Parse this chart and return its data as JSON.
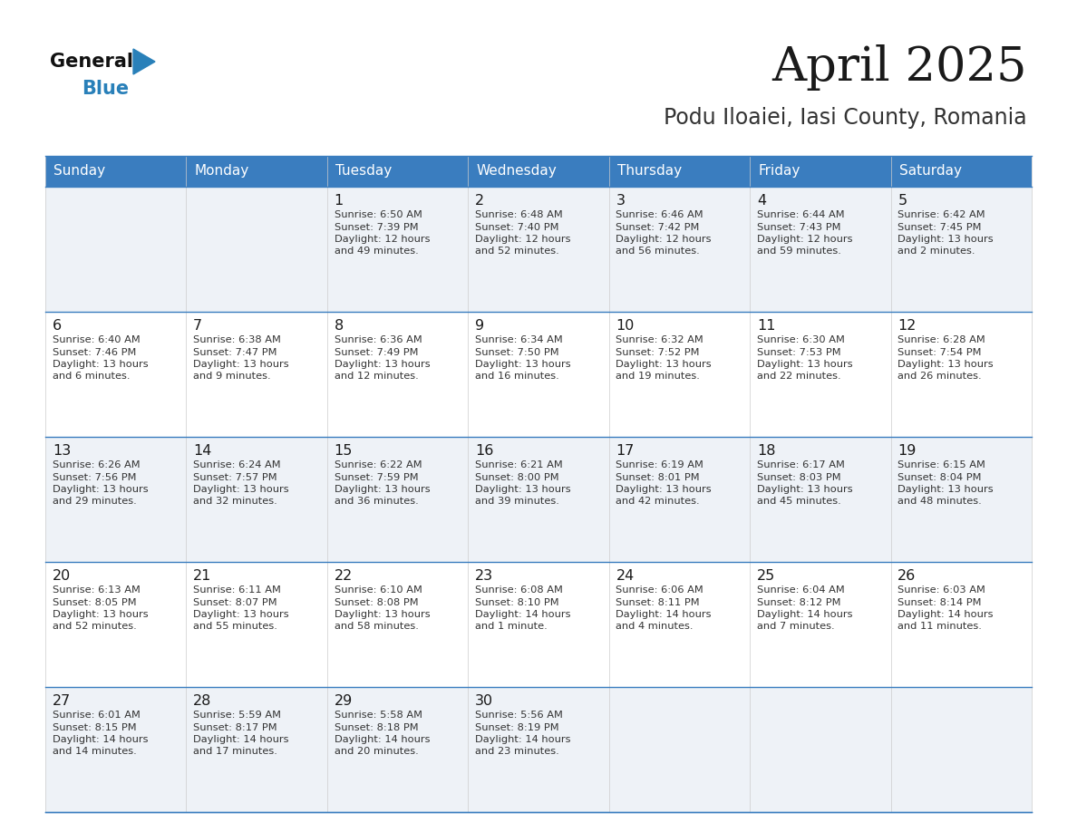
{
  "title": "April 2025",
  "subtitle": "Podu Iloaiei, Iasi County, Romania",
  "header_bg_color": "#3a7dbf",
  "header_text_color": "#ffffff",
  "row_bg_even": "#eef2f7",
  "row_bg_odd": "#ffffff",
  "border_color": "#3a7dbf",
  "text_color": "#222222",
  "day_names": [
    "Sunday",
    "Monday",
    "Tuesday",
    "Wednesday",
    "Thursday",
    "Friday",
    "Saturday"
  ],
  "calendar": [
    [
      {
        "day": "",
        "lines": []
      },
      {
        "day": "",
        "lines": []
      },
      {
        "day": "1",
        "lines": [
          "Sunrise: 6:50 AM",
          "Sunset: 7:39 PM",
          "Daylight: 12 hours",
          "and 49 minutes."
        ]
      },
      {
        "day": "2",
        "lines": [
          "Sunrise: 6:48 AM",
          "Sunset: 7:40 PM",
          "Daylight: 12 hours",
          "and 52 minutes."
        ]
      },
      {
        "day": "3",
        "lines": [
          "Sunrise: 6:46 AM",
          "Sunset: 7:42 PM",
          "Daylight: 12 hours",
          "and 56 minutes."
        ]
      },
      {
        "day": "4",
        "lines": [
          "Sunrise: 6:44 AM",
          "Sunset: 7:43 PM",
          "Daylight: 12 hours",
          "and 59 minutes."
        ]
      },
      {
        "day": "5",
        "lines": [
          "Sunrise: 6:42 AM",
          "Sunset: 7:45 PM",
          "Daylight: 13 hours",
          "and 2 minutes."
        ]
      }
    ],
    [
      {
        "day": "6",
        "lines": [
          "Sunrise: 6:40 AM",
          "Sunset: 7:46 PM",
          "Daylight: 13 hours",
          "and 6 minutes."
        ]
      },
      {
        "day": "7",
        "lines": [
          "Sunrise: 6:38 AM",
          "Sunset: 7:47 PM",
          "Daylight: 13 hours",
          "and 9 minutes."
        ]
      },
      {
        "day": "8",
        "lines": [
          "Sunrise: 6:36 AM",
          "Sunset: 7:49 PM",
          "Daylight: 13 hours",
          "and 12 minutes."
        ]
      },
      {
        "day": "9",
        "lines": [
          "Sunrise: 6:34 AM",
          "Sunset: 7:50 PM",
          "Daylight: 13 hours",
          "and 16 minutes."
        ]
      },
      {
        "day": "10",
        "lines": [
          "Sunrise: 6:32 AM",
          "Sunset: 7:52 PM",
          "Daylight: 13 hours",
          "and 19 minutes."
        ]
      },
      {
        "day": "11",
        "lines": [
          "Sunrise: 6:30 AM",
          "Sunset: 7:53 PM",
          "Daylight: 13 hours",
          "and 22 minutes."
        ]
      },
      {
        "day": "12",
        "lines": [
          "Sunrise: 6:28 AM",
          "Sunset: 7:54 PM",
          "Daylight: 13 hours",
          "and 26 minutes."
        ]
      }
    ],
    [
      {
        "day": "13",
        "lines": [
          "Sunrise: 6:26 AM",
          "Sunset: 7:56 PM",
          "Daylight: 13 hours",
          "and 29 minutes."
        ]
      },
      {
        "day": "14",
        "lines": [
          "Sunrise: 6:24 AM",
          "Sunset: 7:57 PM",
          "Daylight: 13 hours",
          "and 32 minutes."
        ]
      },
      {
        "day": "15",
        "lines": [
          "Sunrise: 6:22 AM",
          "Sunset: 7:59 PM",
          "Daylight: 13 hours",
          "and 36 minutes."
        ]
      },
      {
        "day": "16",
        "lines": [
          "Sunrise: 6:21 AM",
          "Sunset: 8:00 PM",
          "Daylight: 13 hours",
          "and 39 minutes."
        ]
      },
      {
        "day": "17",
        "lines": [
          "Sunrise: 6:19 AM",
          "Sunset: 8:01 PM",
          "Daylight: 13 hours",
          "and 42 minutes."
        ]
      },
      {
        "day": "18",
        "lines": [
          "Sunrise: 6:17 AM",
          "Sunset: 8:03 PM",
          "Daylight: 13 hours",
          "and 45 minutes."
        ]
      },
      {
        "day": "19",
        "lines": [
          "Sunrise: 6:15 AM",
          "Sunset: 8:04 PM",
          "Daylight: 13 hours",
          "and 48 minutes."
        ]
      }
    ],
    [
      {
        "day": "20",
        "lines": [
          "Sunrise: 6:13 AM",
          "Sunset: 8:05 PM",
          "Daylight: 13 hours",
          "and 52 minutes."
        ]
      },
      {
        "day": "21",
        "lines": [
          "Sunrise: 6:11 AM",
          "Sunset: 8:07 PM",
          "Daylight: 13 hours",
          "and 55 minutes."
        ]
      },
      {
        "day": "22",
        "lines": [
          "Sunrise: 6:10 AM",
          "Sunset: 8:08 PM",
          "Daylight: 13 hours",
          "and 58 minutes."
        ]
      },
      {
        "day": "23",
        "lines": [
          "Sunrise: 6:08 AM",
          "Sunset: 8:10 PM",
          "Daylight: 14 hours",
          "and 1 minute."
        ]
      },
      {
        "day": "24",
        "lines": [
          "Sunrise: 6:06 AM",
          "Sunset: 8:11 PM",
          "Daylight: 14 hours",
          "and 4 minutes."
        ]
      },
      {
        "day": "25",
        "lines": [
          "Sunrise: 6:04 AM",
          "Sunset: 8:12 PM",
          "Daylight: 14 hours",
          "and 7 minutes."
        ]
      },
      {
        "day": "26",
        "lines": [
          "Sunrise: 6:03 AM",
          "Sunset: 8:14 PM",
          "Daylight: 14 hours",
          "and 11 minutes."
        ]
      }
    ],
    [
      {
        "day": "27",
        "lines": [
          "Sunrise: 6:01 AM",
          "Sunset: 8:15 PM",
          "Daylight: 14 hours",
          "and 14 minutes."
        ]
      },
      {
        "day": "28",
        "lines": [
          "Sunrise: 5:59 AM",
          "Sunset: 8:17 PM",
          "Daylight: 14 hours",
          "and 17 minutes."
        ]
      },
      {
        "day": "29",
        "lines": [
          "Sunrise: 5:58 AM",
          "Sunset: 8:18 PM",
          "Daylight: 14 hours",
          "and 20 minutes."
        ]
      },
      {
        "day": "30",
        "lines": [
          "Sunrise: 5:56 AM",
          "Sunset: 8:19 PM",
          "Daylight: 14 hours",
          "and 23 minutes."
        ]
      },
      {
        "day": "",
        "lines": []
      },
      {
        "day": "",
        "lines": []
      },
      {
        "day": "",
        "lines": []
      }
    ]
  ]
}
